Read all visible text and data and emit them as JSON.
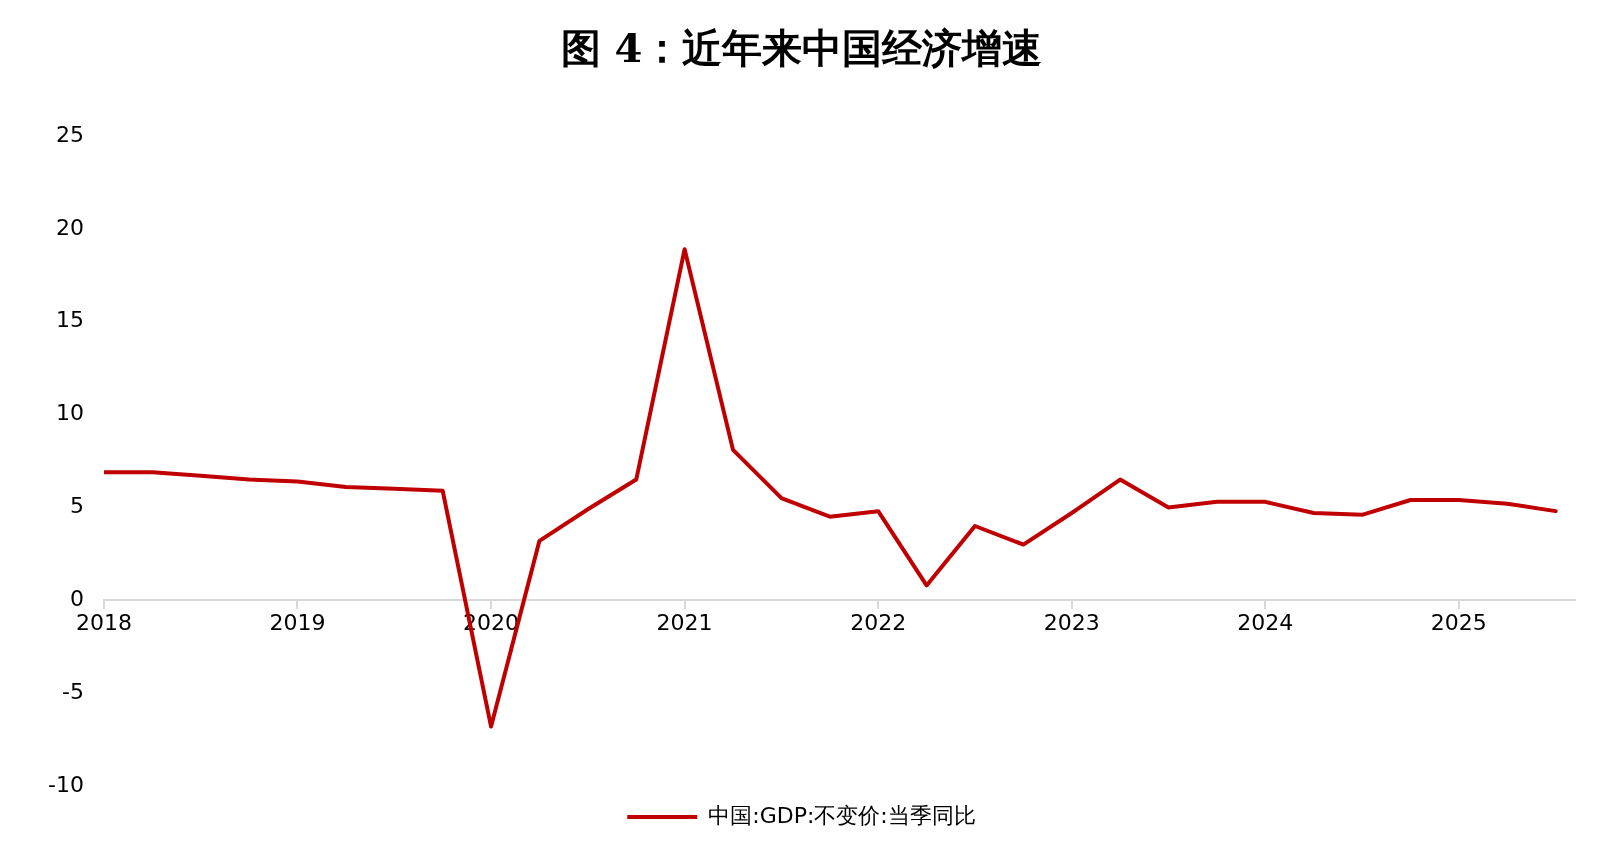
{
  "chart_data": {
    "type": "line",
    "title": "图 4：近年来中国经济增速",
    "x": [
      2018,
      2018.25,
      2018.5,
      2018.75,
      2019,
      2019.25,
      2019.5,
      2019.75,
      2020,
      2020.25,
      2020.5,
      2020.75,
      2021,
      2021.25,
      2021.5,
      2021.75,
      2022,
      2022.25,
      2022.5,
      2022.75,
      2023,
      2023.25,
      2023.5,
      2023.75,
      2024,
      2024.25,
      2024.5,
      2024.75,
      2025,
      2025.25,
      2025.5
    ],
    "series": [
      {
        "name": "中国:GDP:不变价:当季同比",
        "color": "#c00000",
        "values": [
          6.9,
          6.9,
          6.7,
          6.5,
          6.4,
          6.1,
          6.0,
          5.9,
          -6.8,
          3.2,
          4.9,
          6.5,
          18.9,
          8.1,
          5.5,
          4.5,
          4.8,
          0.8,
          4.0,
          3.0,
          4.7,
          6.5,
          5.0,
          5.3,
          5.3,
          4.7,
          4.6,
          5.4,
          5.4,
          5.2,
          4.8
        ]
      }
    ],
    "xlim": [
      2018,
      2025.6
    ],
    "xticks": [
      2018,
      2019,
      2020,
      2021,
      2022,
      2023,
      2024,
      2025
    ],
    "ylim": [
      -10,
      25
    ],
    "yticks": [
      -10,
      -5,
      0,
      5,
      10,
      15,
      20,
      25
    ],
    "grid": false,
    "legend": "bottom",
    "marker": "none",
    "line_style": "solid"
  }
}
